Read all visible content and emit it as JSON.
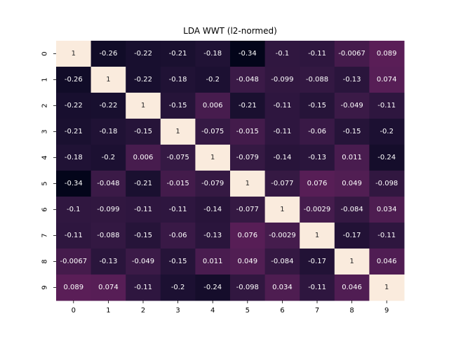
{
  "chart_data": {
    "type": "heatmap",
    "title": "LDA WWT (l2-normed)",
    "x_categories": [
      "0",
      "1",
      "2",
      "3",
      "4",
      "5",
      "6",
      "7",
      "8",
      "9"
    ],
    "y_categories": [
      "0",
      "1",
      "2",
      "3",
      "4",
      "5",
      "6",
      "7",
      "8",
      "9"
    ],
    "values": [
      [
        1,
        -0.26,
        -0.22,
        -0.21,
        -0.18,
        -0.34,
        -0.1,
        -0.11,
        -0.0067,
        0.089
      ],
      [
        -0.26,
        1,
        -0.22,
        -0.18,
        -0.2,
        -0.048,
        -0.099,
        -0.088,
        -0.13,
        0.074
      ],
      [
        -0.22,
        -0.22,
        1,
        -0.15,
        0.006,
        -0.21,
        -0.11,
        -0.15,
        -0.049,
        -0.11
      ],
      [
        -0.21,
        -0.18,
        -0.15,
        1,
        -0.075,
        -0.015,
        -0.11,
        -0.06,
        -0.15,
        -0.2
      ],
      [
        -0.18,
        -0.2,
        0.006,
        -0.075,
        1,
        -0.079,
        -0.14,
        -0.13,
        0.011,
        -0.24
      ],
      [
        -0.34,
        -0.048,
        -0.21,
        -0.015,
        -0.079,
        1,
        -0.077,
        0.076,
        0.049,
        -0.098
      ],
      [
        -0.1,
        -0.099,
        -0.11,
        -0.11,
        -0.14,
        -0.077,
        1,
        -0.0029,
        -0.084,
        0.034
      ],
      [
        -0.11,
        -0.088,
        -0.15,
        -0.06,
        -0.13,
        0.076,
        -0.0029,
        1,
        -0.17,
        -0.11
      ],
      [
        -0.0067,
        -0.13,
        -0.049,
        -0.15,
        0.011,
        0.049,
        -0.084,
        -0.17,
        1,
        0.046
      ],
      [
        0.089,
        0.074,
        -0.11,
        -0.2,
        -0.24,
        -0.098,
        0.034,
        -0.11,
        0.046,
        1
      ]
    ],
    "color_range": [
      -0.34,
      1
    ],
    "colormap": "rocket",
    "show_cell_labels": true,
    "grid": false,
    "legend": "none"
  }
}
